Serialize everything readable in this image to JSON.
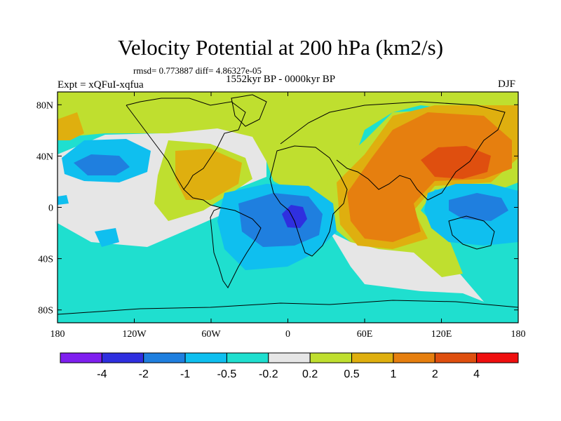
{
  "map": {
    "title": "Velocity Potential at 200 hPa (km2/s)",
    "stats": "rmsd= 0.773887 diff= 4.86327e-05",
    "left_label": "Expt = xQFuI-xqfua",
    "center_label": "1552kyr BP - 0000kyr BP",
    "right_label": "DJF",
    "lon_range": [
      -180,
      180
    ],
    "lat_range": [
      -90,
      90
    ],
    "x_ticks": [
      {
        "lon": -180,
        "label": "180"
      },
      {
        "lon": -120,
        "label": "120W"
      },
      {
        "lon": -60,
        "label": "60W"
      },
      {
        "lon": 0,
        "label": "0"
      },
      {
        "lon": 60,
        "label": "60E"
      },
      {
        "lon": 120,
        "label": "120E"
      },
      {
        "lon": 180,
        "label": "180"
      }
    ],
    "y_ticks": [
      {
        "lat": 80,
        "label": "80N"
      },
      {
        "lat": 40,
        "label": "40N"
      },
      {
        "lat": 0,
        "label": "0"
      },
      {
        "lat": -40,
        "label": "40S"
      },
      {
        "lat": -80,
        "label": "80S"
      }
    ]
  },
  "colorbar": {
    "colors": [
      "#7f1fef",
      "#2f2fdf",
      "#1f7fdf",
      "#0fbfef",
      "#1fdfcf",
      "#e6e6e6",
      "#bfdf2f",
      "#dfaf0f",
      "#e67f0f",
      "#df4f0f",
      "#ef0f0f"
    ],
    "levels": [
      {
        "value": -4,
        "label": "-4"
      },
      {
        "value": -2,
        "label": "-2"
      },
      {
        "value": -1,
        "label": "-1"
      },
      {
        "value": -0.5,
        "label": "-0.5"
      },
      {
        "value": -0.2,
        "label": "-0.2"
      },
      {
        "value": 0.2,
        "label": "0.2"
      },
      {
        "value": 0.5,
        "label": "0.5"
      },
      {
        "value": 1,
        "label": "1"
      },
      {
        "value": 2,
        "label": "2"
      },
      {
        "value": 4,
        "label": "4"
      }
    ]
  },
  "field_regions": [
    {
      "name": "tropical-south-pacific-negative",
      "value": -0.5,
      "level_index": 4
    },
    {
      "name": "north-pacific-low",
      "value": -1.2,
      "level_index": 2
    },
    {
      "name": "south-atlantic-minimum",
      "value": -3.0,
      "level_index": 1
    },
    {
      "name": "asia-maximum",
      "value": 2.5,
      "level_index": 9
    },
    {
      "name": "maritime-continent-low",
      "value": -1.2,
      "level_index": 2
    }
  ]
}
